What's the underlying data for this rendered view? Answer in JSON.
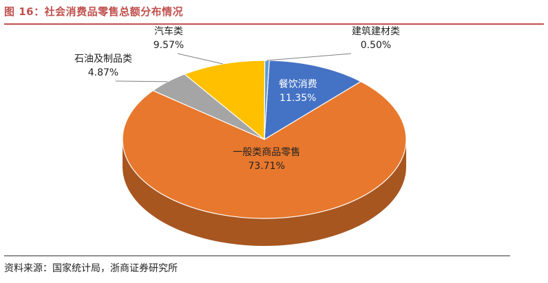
{
  "figure": {
    "title": "图 16：社会消费品零售总额分布情况",
    "source": "资料来源：国家统计局，浙商证券研究所"
  },
  "colors": {
    "title_red": "#c0504d",
    "orange": "#e8782d",
    "blue": "#4472c4",
    "yellow": "#ffc000",
    "gray": "#a5a5a5",
    "lightblue": "#5b9bd5"
  },
  "chart_data": {
    "type": "pie",
    "title": "",
    "style": "3d",
    "legend": "none",
    "slices": [
      {
        "label": "餐饮消费",
        "value": 11.35,
        "display": "11.35%",
        "color": "#4472c4"
      },
      {
        "label": "一般类商品零售",
        "value": 73.71,
        "display": "73.71%",
        "color": "#e8782d"
      },
      {
        "label": "石油及制品类",
        "value": 4.87,
        "display": "4.87%",
        "color": "#a5a5a5"
      },
      {
        "label": "汽车类",
        "value": 9.57,
        "display": "9.57%",
        "color": "#ffc000"
      },
      {
        "label": "建筑建材类",
        "value": 0.5,
        "display": "0.50%",
        "color": "#5b9bd5"
      }
    ]
  }
}
